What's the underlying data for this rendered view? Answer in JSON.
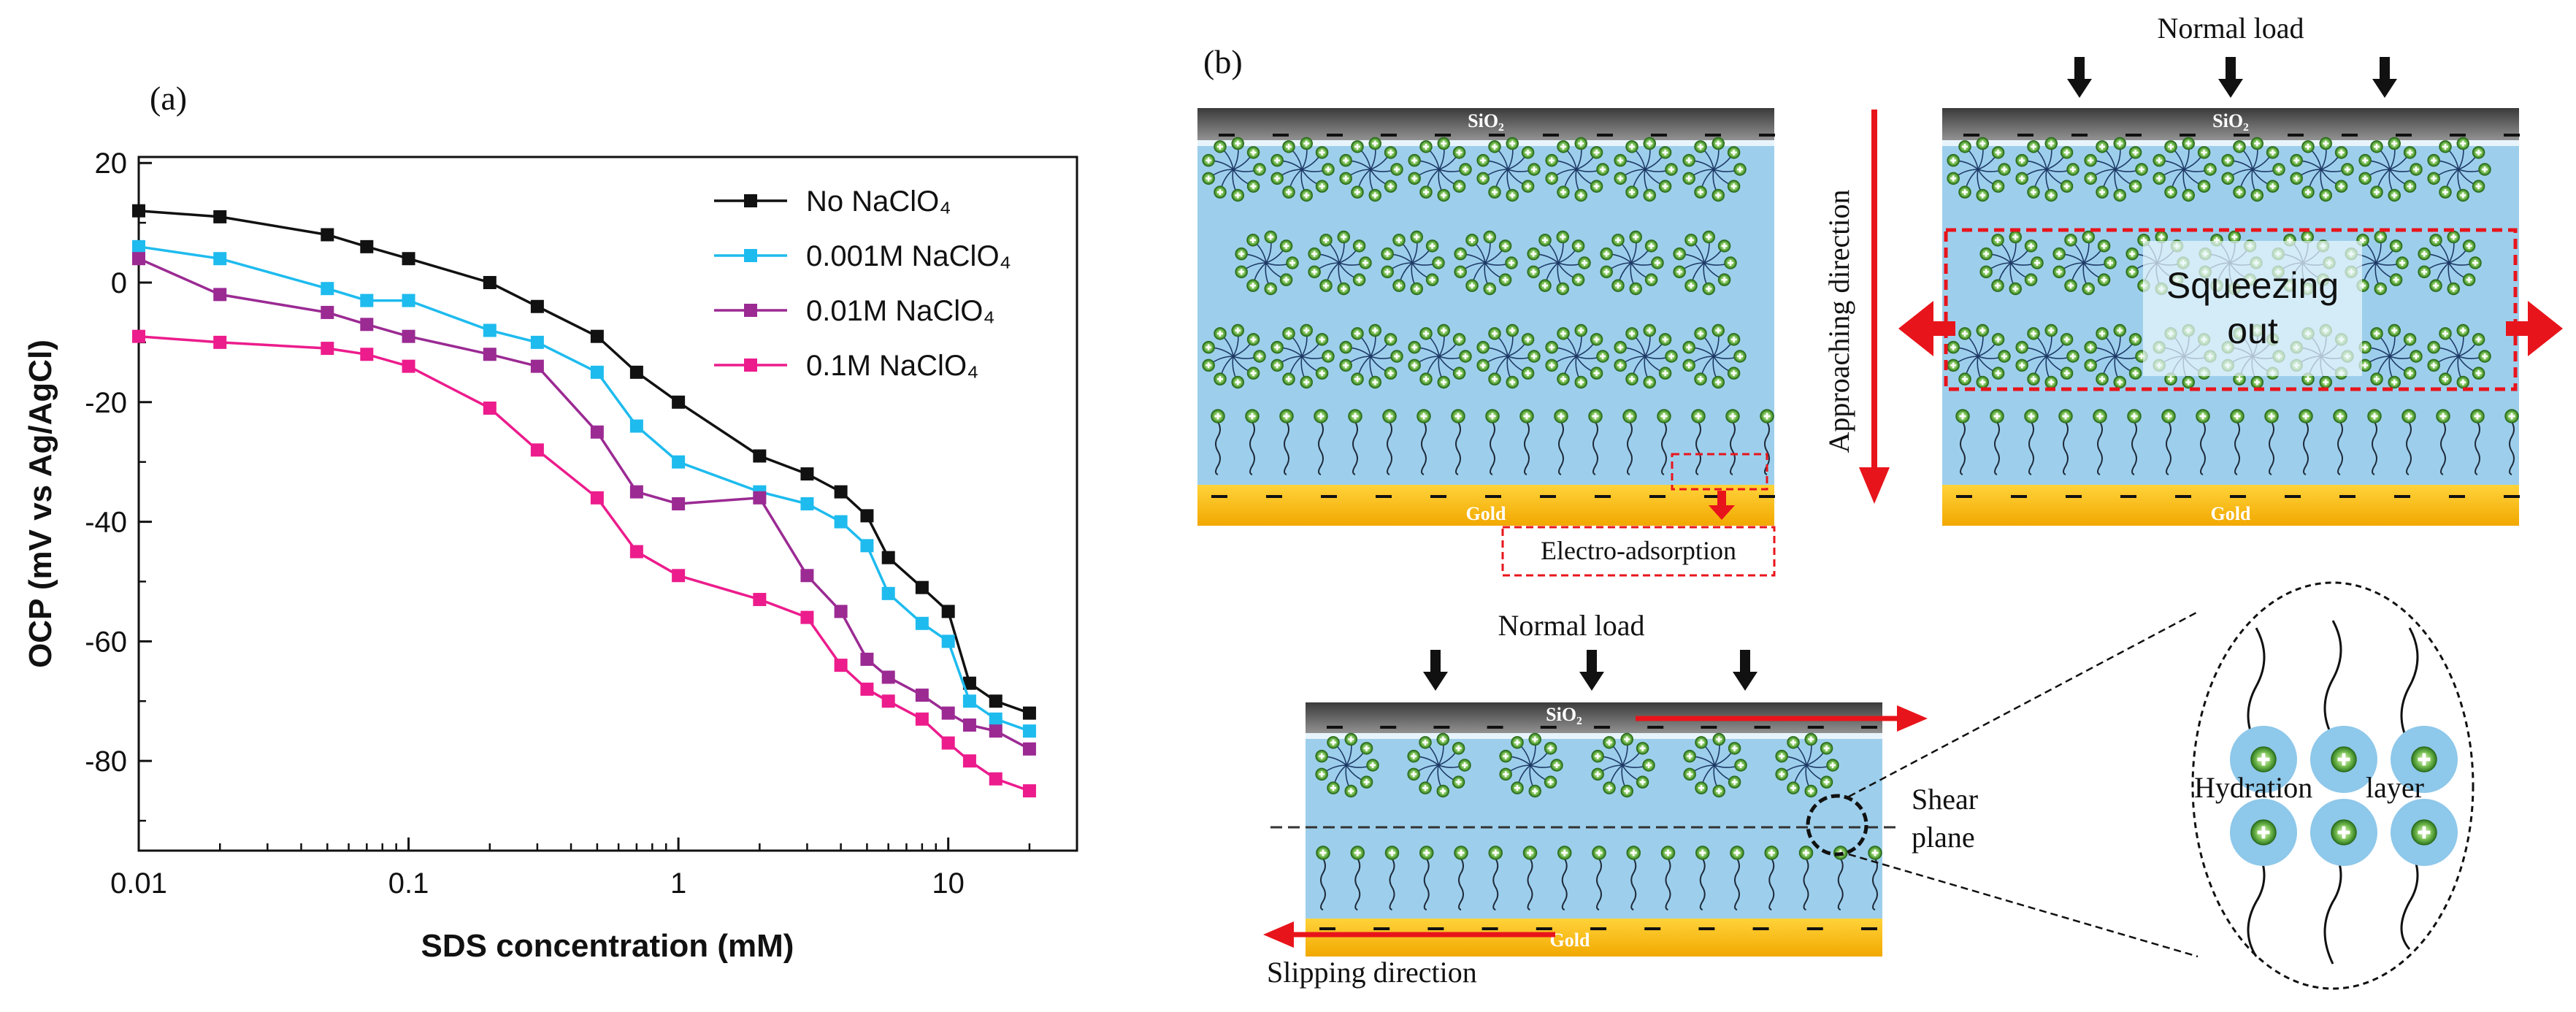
{
  "panel_a": {
    "label": "(a)",
    "chart_data": {
      "type": "line",
      "title": "",
      "xlabel": "SDS concentration (mM)",
      "ylabel": "OCP (mV vs Ag/AgCl)",
      "xscale": "log",
      "xlim": [
        0.01,
        30
      ],
      "ylim": [
        -95,
        21
      ],
      "x_ticks": [
        0.01,
        0.1,
        1,
        10
      ],
      "x_tick_labels": [
        "0.01",
        "0.1",
        "1",
        "10"
      ],
      "y_ticks": [
        20,
        0,
        -20,
        -40,
        -60,
        -80
      ],
      "y_tick_labels": [
        "20",
        "0",
        "-20",
        "-40",
        "-60",
        "-80"
      ],
      "legend_position": "top-right",
      "x": [
        0.01,
        0.02,
        0.05,
        0.07,
        0.1,
        0.2,
        0.3,
        0.5,
        0.7,
        1,
        2,
        3,
        4,
        5,
        6,
        8,
        10,
        12,
        15,
        20
      ],
      "series": [
        {
          "name": "No NaClO₄",
          "color": "#111111",
          "values": [
            12,
            11,
            8,
            6,
            4,
            0,
            -4,
            -9,
            -15,
            -20,
            -29,
            -32,
            -35,
            -39,
            -46,
            -51,
            -55,
            -67,
            -70,
            -72
          ]
        },
        {
          "name": "0.001M NaClO₄",
          "color": "#1EBBEE",
          "values": [
            6,
            4,
            -1,
            -3,
            -3,
            -8,
            -10,
            -15,
            -24,
            -30,
            -35,
            -37,
            -40,
            -44,
            -52,
            -57,
            -60,
            -70,
            -73,
            -75
          ]
        },
        {
          "name": "0.01M NaClO₄",
          "color": "#9B2A93",
          "values": [
            4,
            -2,
            -5,
            -7,
            -9,
            -12,
            -14,
            -25,
            -35,
            -37,
            -36,
            -49,
            -55,
            -63,
            -66,
            -69,
            -72,
            -74,
            -75,
            -78
          ]
        },
        {
          "name": "0.1M NaClO₄",
          "color": "#EC1C8C",
          "values": [
            -9,
            -10,
            -11,
            -12,
            -14,
            -21,
            -28,
            -36,
            -45,
            -49,
            -53,
            -56,
            -64,
            -68,
            -70,
            -73,
            -77,
            -80,
            -83,
            -85
          ]
        }
      ]
    }
  },
  "panel_b": {
    "label": "(b)",
    "sio2": "SiO₂",
    "gold": "Gold",
    "normal_load": "Normal load",
    "electro_adsorption": "Electro-adsorption",
    "approaching_direction": "Approaching direction",
    "squeezing": "Squeezing",
    "out": "out",
    "shear": "Shear",
    "plane": "plane",
    "slipping_direction": "Slipping direction",
    "hydration": "Hydration",
    "layer": "layer",
    "colors": {
      "water": "#9DCFEC",
      "gold": "#F7BD1E",
      "gold_dark": "#E59B00",
      "sio2": "#6E6E6E",
      "arrow_red": "#E8141B",
      "head_green": "#3D8B2C",
      "head_light": "#D7EFB8"
    }
  }
}
